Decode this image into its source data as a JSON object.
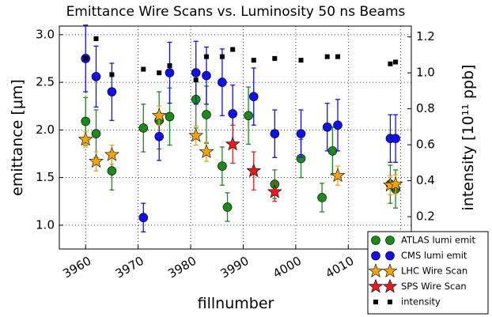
{
  "chart_data": {
    "type": "errorbar-scatter",
    "title": "Emittance Wire Scans vs. Luminosity 50 ns Beams",
    "x_label": "fillnumber",
    "y_label": "emittance [μm]",
    "y2_label": "intensity [10¹¹ ppb]",
    "xlim": [
      3955,
      4022
    ],
    "ylim": [
      0.75,
      3.09
    ],
    "y2lim": [
      0.02,
      1.26
    ],
    "xticks": [
      3960,
      3970,
      3980,
      3990,
      4000,
      4010,
      4020
    ],
    "yticks": [
      {
        "value": 1,
        "label": "1.0"
      },
      1.5,
      {
        "value": 2,
        "label": "2.0"
      },
      2.5,
      {
        "value": 3,
        "label": "3.0"
      }
    ],
    "y2ticks": [
      0.2,
      0.4,
      0.6,
      0.8,
      {
        "value": 1,
        "label": "1.0"
      },
      1.2
    ],
    "grid": true,
    "legend": "lower right",
    "series": [
      {
        "name": "ATLAS lumi emit",
        "color": "#1a8a1a",
        "marker": "circle",
        "x": [
          3960,
          3962,
          3965,
          3971,
          3974,
          3976,
          3981,
          3983,
          3986,
          3987,
          3991,
          3996,
          4001,
          4005,
          4007,
          4018,
          4019
        ],
        "values": [
          2.09,
          1.96,
          1.57,
          2.02,
          2.1,
          2.14,
          2.32,
          2.16,
          1.62,
          1.19,
          2.15,
          1.43,
          1.7,
          1.29,
          1.78,
          1.43,
          1.38
        ],
        "errors": [
          0.25,
          0.25,
          0.2,
          0.25,
          0.3,
          0.3,
          0.3,
          0.3,
          0.2,
          0.15,
          0.3,
          0.15,
          0.2,
          0.15,
          0.25,
          0.2,
          0.2
        ]
      },
      {
        "name": "CMS lumi emit",
        "color": "#1010ee",
        "marker": "circle",
        "x": [
          3960,
          3962,
          3965,
          3971,
          3974,
          3976,
          3981,
          3983,
          3986,
          3988,
          3992,
          3996,
          4001,
          4006,
          4008,
          4018,
          4019
        ],
        "values": [
          2.75,
          2.56,
          2.4,
          1.08,
          1.93,
          2.6,
          2.6,
          2.57,
          2.5,
          2.17,
          2.35,
          1.96,
          1.96,
          2.03,
          2.05,
          1.91,
          1.91
        ],
        "errors": [
          0.35,
          0.32,
          0.3,
          0.15,
          0.25,
          0.32,
          0.33,
          0.3,
          0.35,
          0.3,
          0.3,
          0.25,
          0.25,
          0.25,
          0.27,
          0.25,
          0.25
        ]
      },
      {
        "name": "LHC Wire Scan",
        "color": "#f5a30a",
        "marker": "star",
        "x": [
          3960,
          3962,
          3965,
          3974,
          3981,
          3983,
          4008,
          4018,
          4019
        ],
        "values": [
          1.9,
          1.67,
          1.74,
          2.15,
          1.94,
          1.77,
          1.52,
          1.42,
          1.43
        ],
        "errors": [
          0.08,
          0.1,
          0.1,
          0.1,
          0.1,
          0.1,
          0.1,
          0.1,
          0.1
        ]
      },
      {
        "name": "SPS Wire Scan",
        "color": "#e81c1c",
        "marker": "star",
        "x": [
          3988,
          3992,
          3996
        ],
        "values": [
          1.85,
          1.57,
          1.35
        ],
        "errors": [
          0.2,
          0.2,
          0.1
        ]
      },
      {
        "name": "intensity",
        "color": "#000000",
        "marker": "square",
        "axis": "y2",
        "x": [
          3960,
          3962,
          3965,
          3971,
          3974,
          3976,
          3981,
          3983,
          3986,
          3988,
          3992,
          3996,
          4001,
          4006,
          4008,
          4018,
          4019
        ],
        "values": [
          1.08,
          1.19,
          0.99,
          1.02,
          1.0,
          1.04,
          0.96,
          1.09,
          1.09,
          1.13,
          1.07,
          1.08,
          1.07,
          1.09,
          1.09,
          1.05,
          1.06
        ]
      }
    ]
  }
}
